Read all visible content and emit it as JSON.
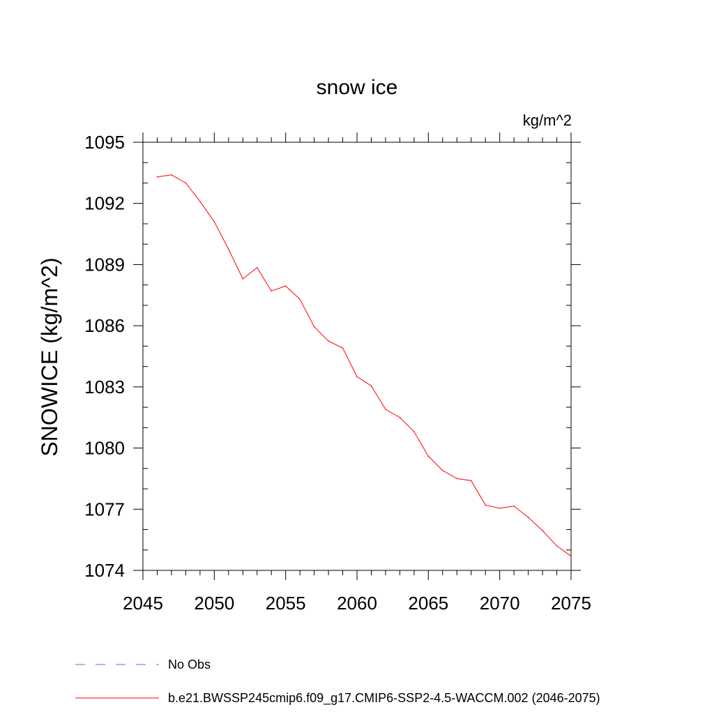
{
  "chart_data": {
    "type": "line",
    "title": "snow ice",
    "units": "kg/m^2",
    "ylabel": "SNOWICE  (kg/m^2)",
    "xlabel": "",
    "xlim": [
      2045,
      2075
    ],
    "ylim": [
      1074,
      1095
    ],
    "x_ticks": [
      2045,
      2050,
      2055,
      2060,
      2065,
      2070,
      2075
    ],
    "y_ticks": [
      1074,
      1077,
      1080,
      1083,
      1086,
      1089,
      1092,
      1095
    ],
    "grid": false,
    "series": [
      {
        "name": "b.e21.BWSSP245cmip6.f09_g17.CMIP6-SSP2-4.5-WACCM.002 (2046-2075)",
        "color": "#ff0000",
        "x": [
          2046,
          2047,
          2048,
          2049,
          2050,
          2051,
          2052,
          2053,
          2054,
          2055,
          2056,
          2057,
          2058,
          2059,
          2060,
          2061,
          2062,
          2063,
          2064,
          2065,
          2066,
          2067,
          2068,
          2069,
          2070,
          2071,
          2072,
          2073,
          2074,
          2075
        ],
        "values": [
          1093.3,
          1093.4,
          1093.0,
          1092.1,
          1091.1,
          1089.75,
          1088.3,
          1088.85,
          1087.7,
          1087.95,
          1087.3,
          1085.95,
          1085.25,
          1084.9,
          1083.5,
          1083.05,
          1081.9,
          1081.5,
          1080.8,
          1079.6,
          1078.9,
          1078.5,
          1078.4,
          1077.2,
          1077.05,
          1077.15,
          1076.6,
          1075.95,
          1075.2,
          1074.7
        ]
      }
    ],
    "legend": [
      {
        "label": "No Obs",
        "color": "#6a6ad0",
        "style": "dashed"
      },
      {
        "label": "b.e21.BWSSP245cmip6.f09_g17.CMIP6-SSP2-4.5-WACCM.002 (2046-2075)",
        "color": "#ff0000",
        "style": "solid"
      }
    ],
    "legend_position": "bottom-left"
  }
}
